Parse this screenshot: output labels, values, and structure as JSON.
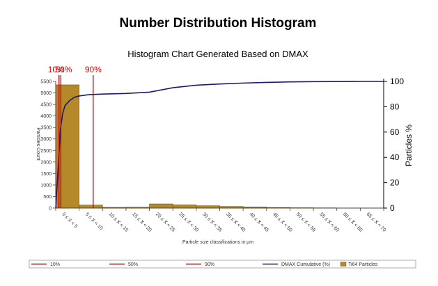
{
  "chart_data": {
    "type": "bar",
    "title": "Number Distribution Histogram",
    "subtitle": "Histogram Chart Generated Based on DMAX",
    "xlabel": "Particle size classifications in µm",
    "ylabel": "Particles Count",
    "y2label": "Particles %",
    "ylim": [
      0,
      5500
    ],
    "y2lim": [
      0,
      100
    ],
    "yticks": [
      0,
      500,
      1000,
      1500,
      2000,
      2500,
      3000,
      3500,
      4000,
      4500,
      5000,
      5500
    ],
    "y2ticks": [
      0,
      20,
      40,
      60,
      80,
      100
    ],
    "xlim": [
      0,
      70
    ],
    "categories": [
      "0 ≤ X < 5",
      "5 ≤ X < 10",
      "10 ≤ X < 15",
      "15 ≤ X < 20",
      "20 ≤ X < 25",
      "25 ≤ X < 30",
      "30 ≤ X < 35",
      "35 ≤ X < 40",
      "40 ≤ X < 45",
      "45 ≤ X < 50",
      "50 ≤ X < 55",
      "55 ≤ X < 60",
      "60 ≤ X < 65",
      "65 ≤ X < 70"
    ],
    "series": [
      {
        "name": "Ti64 Particles",
        "type": "bar",
        "color": "#b5882a",
        "values": [
          5350,
          130,
          30,
          40,
          180,
          140,
          100,
          70,
          50,
          25,
          15,
          10,
          5,
          3
        ]
      },
      {
        "name": "DMAX Cumulative (%)",
        "type": "line",
        "axis": "right",
        "color": "#1a1a6e",
        "x": [
          0,
          0.5,
          1,
          1.5,
          2,
          3,
          4,
          5,
          7,
          10,
          15,
          20,
          25,
          30,
          35,
          40,
          45,
          50,
          55,
          60,
          65,
          70
        ],
        "y": [
          0,
          30,
          62,
          75,
          81,
          85,
          87.5,
          88.5,
          89.5,
          90,
          90.5,
          91.5,
          95,
          97,
          98,
          98.7,
          99.2,
          99.6,
          99.8,
          99.9,
          100,
          100
        ]
      }
    ],
    "markers": [
      {
        "label": "10%",
        "x": 0.7,
        "color": "#d40000"
      },
      {
        "label": "50%",
        "x": 1.1,
        "color": "#d40000"
      },
      {
        "label": "90%",
        "x": 8.0,
        "color": "#d40000"
      }
    ],
    "legend": {
      "placement": "bottom",
      "items": [
        {
          "label": "10%",
          "kind": "line",
          "color": "#d40000"
        },
        {
          "label": "50%",
          "kind": "line",
          "color": "#d40000"
        },
        {
          "label": "90%",
          "kind": "line",
          "color": "#d40000"
        },
        {
          "label": "DMAX Cumulative (%)",
          "kind": "line",
          "color": "#1a1a6e"
        },
        {
          "label": "Ti64 Particles",
          "kind": "box",
          "color": "#b5882a"
        }
      ]
    }
  }
}
